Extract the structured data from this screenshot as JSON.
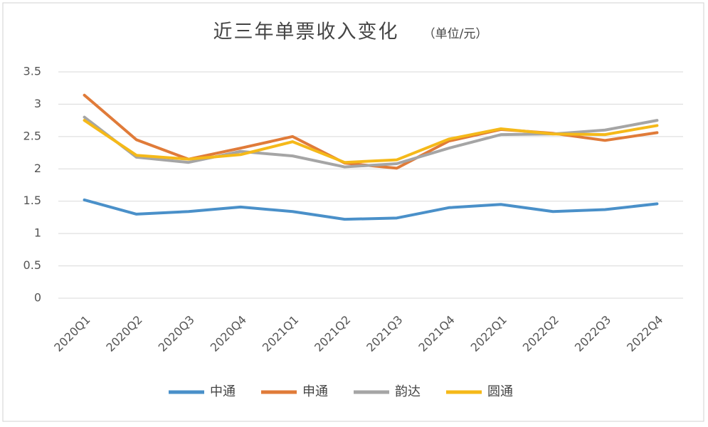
{
  "chart_data": {
    "type": "line",
    "title": "近三年单票收入变化",
    "subtitle": "（单位/元）",
    "categories": [
      "2020Q1",
      "2020Q2",
      "2020Q3",
      "2020Q4",
      "2021Q1",
      "2021Q2",
      "2021Q3",
      "2021Q4",
      "2022Q1",
      "2022Q2",
      "2022Q3",
      "2022Q4"
    ],
    "series": [
      {
        "name": "中通",
        "color": "#4a90c9",
        "values": [
          1.52,
          1.3,
          1.34,
          1.41,
          1.34,
          1.22,
          1.24,
          1.4,
          1.45,
          1.34,
          1.37,
          1.46
        ]
      },
      {
        "name": "申通",
        "color": "#e07b39",
        "values": [
          3.14,
          2.45,
          2.15,
          2.32,
          2.5,
          2.09,
          2.01,
          2.43,
          2.61,
          2.55,
          2.44,
          2.56
        ]
      },
      {
        "name": "韵达",
        "color": "#a5a5a5",
        "values": [
          2.8,
          2.18,
          2.1,
          2.27,
          2.2,
          2.03,
          2.08,
          2.32,
          2.53,
          2.54,
          2.6,
          2.75
        ]
      },
      {
        "name": "圆通",
        "color": "#f5b919",
        "values": [
          2.75,
          2.21,
          2.15,
          2.22,
          2.42,
          2.1,
          2.14,
          2.46,
          2.62,
          2.54,
          2.53,
          2.67
        ]
      }
    ],
    "ylim": [
      0,
      3.5
    ],
    "yticks": [
      0,
      0.5,
      1,
      1.5,
      2,
      2.5,
      3,
      3.5
    ],
    "grid": true,
    "legend": "bottom"
  }
}
